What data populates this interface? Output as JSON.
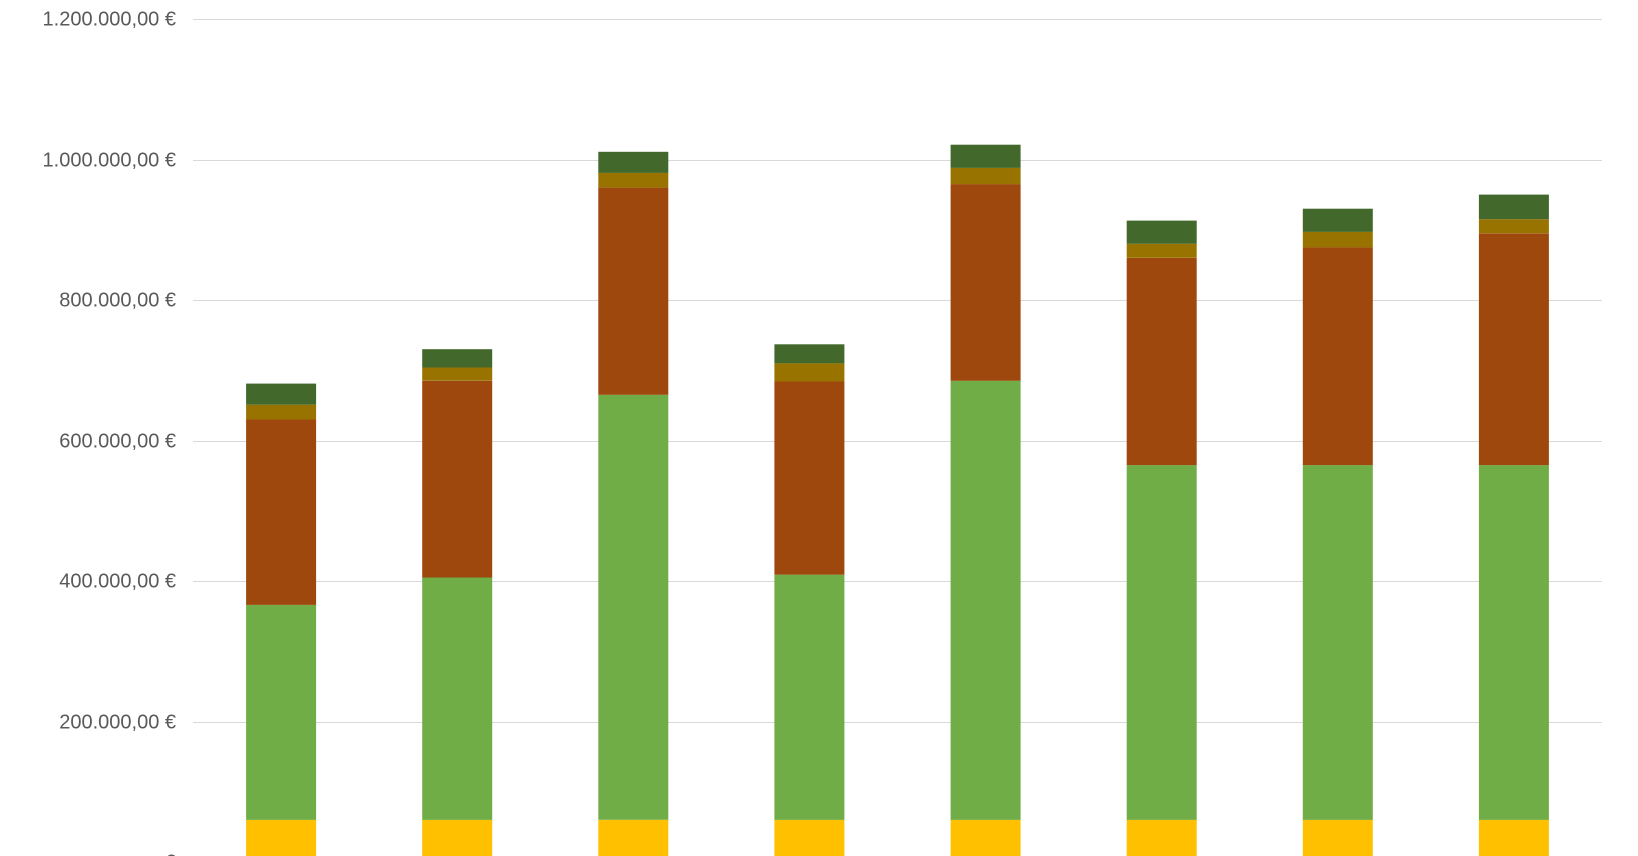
{
  "chart_data": {
    "type": "bar",
    "stacked": true,
    "categories": [
      "",
      "",
      "",
      "",
      "",
      "",
      "",
      ""
    ],
    "series": [
      {
        "color": "#FFC000",
        "values": [
          60000,
          60000,
          60000,
          60000,
          60000,
          60000,
          60000,
          60000
        ]
      },
      {
        "color": "#70AD47",
        "values": [
          306000,
          345000,
          605000,
          349000,
          625000,
          505000,
          505000,
          505000
        ]
      },
      {
        "color": "#9E480E",
        "values": [
          264000,
          280000,
          295000,
          275000,
          280000,
          295000,
          310000,
          330000
        ]
      },
      {
        "color": "#997300",
        "values": [
          21000,
          19000,
          21000,
          26000,
          23000,
          20000,
          22000,
          20000
        ]
      },
      {
        "color": "#43682B",
        "values": [
          30000,
          26000,
          30000,
          27000,
          33000,
          33000,
          33000,
          35000
        ]
      }
    ],
    "ylim": [
      0,
      1200000
    ],
    "y_ticks": [
      {
        "value": 0,
        "label": "- €"
      },
      {
        "value": 200000,
        "label": "200.000,00 €"
      },
      {
        "value": 400000,
        "label": "400.000,00 €"
      },
      {
        "value": 600000,
        "label": "600.000,00 €"
      },
      {
        "value": 800000,
        "label": "800.000,00 €"
      },
      {
        "value": 1000000,
        "label": "1.000.000,00 €"
      },
      {
        "value": 1200000,
        "label": "1.200.000,00 €"
      }
    ],
    "grid": true,
    "legend": "none",
    "title": "",
    "xlabel": "",
    "ylabel": ""
  }
}
